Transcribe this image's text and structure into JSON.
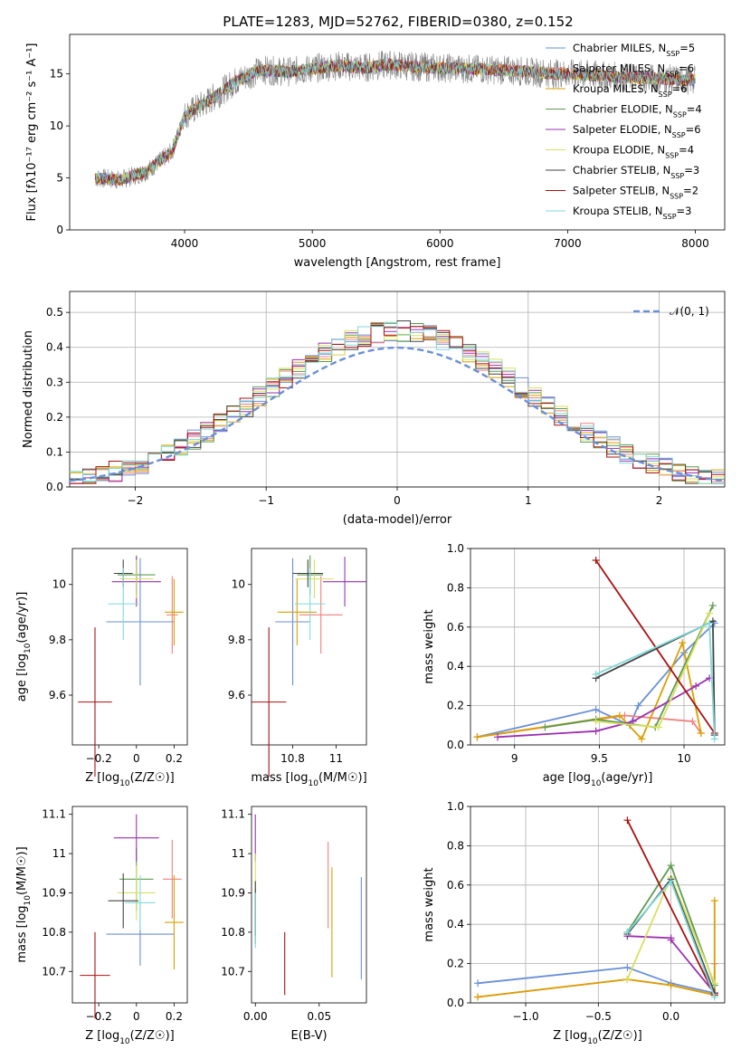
{
  "figure_title": "PLATE=1283, MJD=52762, FIBERID=0380, z=0.152",
  "model_colors": [
    "#6a8fd8",
    "#f08080",
    "#d9a000",
    "#5f9a50",
    "#9b30b0",
    "#d7e060",
    "#444444",
    "#aa1010",
    "#80d8d8"
  ],
  "chart_data": [
    {
      "id": "spectrum",
      "type": "line",
      "xlabel": "wavelength [Angstrom, rest frame]",
      "ylabel": "Flux [fλ10⁻¹⁷ erg cm⁻² s⁻¹ A⁻¹]",
      "xlim": [
        3100,
        8230
      ],
      "ylim": [
        0,
        18.8
      ],
      "xticks": [
        4000,
        5000,
        6000,
        7000,
        8000
      ],
      "yticks": [
        0,
        5,
        10,
        15
      ],
      "legend_position": "top-right",
      "legend": [
        {
          "base": "Chabrier MILES, N",
          "sub": "SSP",
          "tail": "=5"
        },
        {
          "base": "Salpeter MILES, N",
          "sub": "SSP",
          "tail": "=6"
        },
        {
          "base": "Kroupa MILES, N",
          "sub": "SSP",
          "tail": "=6"
        },
        {
          "base": "Chabrier ELODIE, N",
          "sub": "SSP",
          "tail": "=4"
        },
        {
          "base": "Salpeter ELODIE, N",
          "sub": "SSP",
          "tail": "=6"
        },
        {
          "base": "Kroupa ELODIE, N",
          "sub": "SSP",
          "tail": "=4"
        },
        {
          "base": "Chabrier STELIB, N",
          "sub": "SSP",
          "tail": "=3"
        },
        {
          "base": "Salpeter STELIB, N",
          "sub": "SSP",
          "tail": "=2"
        },
        {
          "base": "Kroupa STELIB, N",
          "sub": "SSP",
          "tail": "=3"
        }
      ],
      "continuum_x": [
        3300,
        3500,
        3700,
        3900,
        4000,
        4200,
        4400,
        4600,
        4800,
        5000,
        5200,
        5400,
        5600,
        5800,
        6000,
        6200,
        6400,
        6600,
        6800,
        7000,
        7200,
        7400,
        7600,
        7800,
        8000
      ],
      "continuum_y": [
        5.0,
        4.8,
        5.6,
        7.5,
        11.0,
        12.5,
        14.3,
        15.4,
        15.2,
        15.5,
        15.8,
        15.6,
        15.9,
        15.7,
        15.6,
        15.5,
        15.4,
        15.3,
        15.1,
        15.0,
        14.9,
        14.7,
        14.6,
        14.5,
        14.4
      ],
      "grid": false
    },
    {
      "id": "residuals",
      "type": "histogram",
      "xlabel": "(data-model)/error",
      "ylabel": "Normed distribution",
      "xlim": [
        -2.5,
        2.5
      ],
      "ylim": [
        0,
        0.56
      ],
      "xticks": [
        -2,
        -1,
        0,
        1,
        2
      ],
      "yticks": [
        0.0,
        0.1,
        0.2,
        0.3,
        0.4,
        0.5
      ],
      "bins_start": -2.5,
      "bin_width": 0.1,
      "reference_label": "𝒩(0, 1)",
      "reference_color": "#6a8fd8",
      "legend_position": "top-right",
      "grid": true
    },
    {
      "id": "age-vs-Z",
      "type": "errorbar",
      "xlabel_main": "Z [log",
      "xlabel_sub": "10",
      "xlabel_tail": "(Z/Z☉)]",
      "ylabel_main": "age  [log",
      "ylabel_sub": "10",
      "ylabel_tail": "(age/yr)]",
      "xlim": [
        -0.34,
        0.27
      ],
      "ylim": [
        9.42,
        10.13
      ],
      "xticks": [
        -0.2,
        0.0,
        0.2
      ],
      "yticks": [
        9.6,
        9.8,
        10.0
      ],
      "points": [
        {
          "x": 0.02,
          "y": 9.865,
          "xerr": 0.18,
          "yerr": 0.23
        },
        {
          "x": 0.19,
          "y": 9.89,
          "xerr": 0.03,
          "yerr": 0.14
        },
        {
          "x": 0.2,
          "y": 9.9,
          "xerr": 0.05,
          "yerr": 0.12
        },
        {
          "x": 0.0,
          "y": 10.035,
          "xerr": 0.1,
          "yerr": 0.07
        },
        {
          "x": 0.0,
          "y": 10.01,
          "xerr": 0.13,
          "yerr": 0.09
        },
        {
          "x": 0.0,
          "y": 10.02,
          "xerr": 0.09,
          "yerr": 0.07
        },
        {
          "x": -0.07,
          "y": 10.04,
          "xerr": 0.05,
          "yerr": 0.05
        },
        {
          "x": -0.22,
          "y": 9.575,
          "xerr": 0.09,
          "yerr": 0.27
        },
        {
          "x": -0.07,
          "y": 9.93,
          "xerr": 0.08,
          "yerr": 0.13
        }
      ]
    },
    {
      "id": "age-vs-mass",
      "type": "errorbar",
      "xlabel_main": "mass [log",
      "xlabel_sub": "10",
      "xlabel_tail": "(M/M☉)]",
      "xlim": [
        10.61,
        11.14
      ],
      "ylim": [
        9.42,
        10.13
      ],
      "xticks": [
        10.8,
        11.0
      ],
      "yticks": [
        9.6,
        9.8,
        10.0
      ],
      "points": [
        {
          "x": 10.8,
          "y": 9.865,
          "xerr": 0.08,
          "yerr": 0.23
        },
        {
          "x": 10.93,
          "y": 9.89,
          "xerr": 0.1,
          "yerr": 0.14
        },
        {
          "x": 10.82,
          "y": 9.9,
          "xerr": 0.09,
          "yerr": 0.12
        },
        {
          "x": 10.88,
          "y": 10.035,
          "xerr": 0.06,
          "yerr": 0.07
        },
        {
          "x": 11.04,
          "y": 10.01,
          "xerr": 0.1,
          "yerr": 0.09
        },
        {
          "x": 10.9,
          "y": 10.02,
          "xerr": 0.09,
          "yerr": 0.07
        },
        {
          "x": 10.87,
          "y": 10.04,
          "xerr": 0.07,
          "yerr": 0.05
        },
        {
          "x": 10.69,
          "y": 9.575,
          "xerr": 0.08,
          "yerr": 0.27
        },
        {
          "x": 10.88,
          "y": 9.93,
          "xerr": 0.07,
          "yerr": 0.13
        }
      ]
    },
    {
      "id": "weight-vs-age",
      "type": "line",
      "xlabel_main": "age  [log",
      "xlabel_sub": "10",
      "xlabel_tail": "(age/yr)]",
      "ylabel": "mass weight",
      "xlim": [
        8.74,
        10.24
      ],
      "ylim": [
        0.0,
        1.0
      ],
      "xticks": [
        9.0,
        9.5,
        10.0
      ],
      "yticks": [
        0.0,
        0.2,
        0.4,
        0.6,
        0.8,
        1.0
      ],
      "grid": true,
      "series": [
        {
          "x": [
            8.78,
            9.48,
            9.68,
            9.73,
            10.0,
            10.18
          ],
          "y": [
            0.04,
            0.18,
            0.1,
            0.2,
            0.47,
            0.62
          ]
        },
        {
          "x": [
            8.78,
            9.65,
            10.05,
            10.1
          ],
          "y": [
            0.04,
            0.15,
            0.12,
            0.06
          ]
        },
        {
          "x": [
            8.78,
            9.62,
            9.75,
            9.99,
            10.1
          ],
          "y": [
            0.04,
            0.15,
            0.03,
            0.52,
            0.06
          ]
        },
        {
          "x": [
            9.18,
            9.48,
            9.83,
            10.17
          ],
          "y": [
            0.09,
            0.13,
            0.09,
            0.71
          ]
        },
        {
          "x": [
            8.9,
            9.48,
            9.7,
            10.07,
            10.15
          ],
          "y": [
            0.04,
            0.07,
            0.12,
            0.3,
            0.34
          ]
        },
        {
          "x": [
            9.48,
            9.85,
            10.15
          ],
          "y": [
            0.12,
            0.09,
            0.67
          ]
        },
        {
          "x": [
            9.48,
            10.17,
            10.18
          ],
          "y": [
            0.34,
            0.63,
            0.05
          ]
        },
        {
          "x": [
            9.48,
            10.18
          ],
          "y": [
            0.94,
            0.06
          ]
        },
        {
          "x": [
            9.48,
            10.15,
            10.18
          ],
          "y": [
            0.36,
            0.62,
            0.03
          ]
        }
      ]
    },
    {
      "id": "mass-vs-Z",
      "type": "errorbar",
      "xlabel_main": "Z [log",
      "xlabel_sub": "10",
      "xlabel_tail": "(Z/Z☉)]",
      "ylabel_main": "mass [log",
      "ylabel_sub": "10",
      "ylabel_tail": "(M/M☉)]",
      "xlim": [
        -0.34,
        0.27
      ],
      "ylim": [
        10.62,
        11.12
      ],
      "xticks": [
        -0.2,
        0.0,
        0.2
      ],
      "yticks": [
        10.7,
        10.8,
        10.9,
        11.0,
        11.1
      ],
      "points": [
        {
          "x": 0.02,
          "y": 10.795,
          "xerr": 0.18,
          "yerr": 0.08
        },
        {
          "x": 0.19,
          "y": 10.935,
          "xerr": 0.05,
          "yerr": 0.1
        },
        {
          "x": 0.2,
          "y": 10.825,
          "xerr": 0.05,
          "yerr": 0.12
        },
        {
          "x": 0.0,
          "y": 10.935,
          "xerr": 0.09,
          "yerr": 0.08
        },
        {
          "x": 0.0,
          "y": 11.04,
          "xerr": 0.12,
          "yerr": 0.06
        },
        {
          "x": 0.0,
          "y": 10.9,
          "xerr": 0.1,
          "yerr": 0.07
        },
        {
          "x": -0.07,
          "y": 10.88,
          "xerr": 0.08,
          "yerr": 0.07
        },
        {
          "x": -0.22,
          "y": 10.69,
          "xerr": 0.08,
          "yerr": 0.11
        },
        {
          "x": 0.02,
          "y": 10.875,
          "xerr": 0.08,
          "yerr": 0.07
        }
      ]
    },
    {
      "id": "mass-vs-ebv",
      "type": "errorbar",
      "xlabel": "E(B-V)",
      "xlim": [
        -0.003,
        0.087
      ],
      "ylim": [
        10.62,
        11.12
      ],
      "xticks": [
        0.0,
        0.05
      ],
      "xtick_labels": [
        "0.00",
        "0.05"
      ],
      "yticks": [
        10.7,
        10.8,
        10.9,
        11.0,
        11.1
      ],
      "points": [
        {
          "x": 0.083,
          "y": 10.81,
          "xerr": 0,
          "yerr": 0.13
        },
        {
          "x": 0.057,
          "y": 10.92,
          "xerr": 0,
          "yerr": 0.11
        },
        {
          "x": 0.06,
          "y": 10.825,
          "xerr": 0,
          "yerr": 0.14
        },
        {
          "x": 0.0,
          "y": 10.84,
          "xerr": 0,
          "yerr": 0.07
        },
        {
          "x": 0.0,
          "y": 11.04,
          "xerr": 0,
          "yerr": 0.06
        },
        {
          "x": 0.0,
          "y": 10.93,
          "xerr": 0,
          "yerr": 0.07
        },
        {
          "x": 0.0,
          "y": 10.86,
          "xerr": 0,
          "yerr": 0.07
        },
        {
          "x": 0.023,
          "y": 10.72,
          "xerr": 0,
          "yerr": 0.08
        },
        {
          "x": 0.0,
          "y": 10.83,
          "xerr": 0,
          "yerr": 0.07
        }
      ]
    },
    {
      "id": "weight-vs-Z",
      "type": "line",
      "xlabel_main": "Z [log",
      "xlabel_sub": "10",
      "xlabel_tail": "(Z/Z☉)]",
      "ylabel": "mass weight",
      "xlim": [
        -1.38,
        0.37
      ],
      "ylim": [
        0.0,
        1.0
      ],
      "xticks": [
        -1.0,
        -0.5,
        0.0
      ],
      "xtick_labels": [
        "−1.0",
        "−0.5",
        "0.0"
      ],
      "yticks": [
        0.0,
        0.2,
        0.4,
        0.6,
        0.8,
        1.0
      ],
      "grid": true,
      "series": [
        {
          "x": [
            -1.33,
            -0.3,
            0.0,
            0.3
          ],
          "y": [
            0.1,
            0.18,
            0.1,
            0.05
          ]
        },
        {
          "x": [
            -1.33,
            -0.3,
            0.0,
            0.3,
            0.3
          ],
          "y": [
            0.03,
            0.12,
            0.09,
            0.04,
            0.2
          ]
        },
        {
          "x": [
            -1.33,
            -0.3,
            0.0,
            0.3,
            0.3
          ],
          "y": [
            0.03,
            0.12,
            0.09,
            0.04,
            0.52
          ]
        },
        {
          "x": [
            -0.3,
            0.0,
            0.3
          ],
          "y": [
            0.36,
            0.7,
            0.09
          ]
        },
        {
          "x": [
            -0.3,
            0.0,
            0.0,
            0.3
          ],
          "y": [
            0.34,
            0.33,
            0.32,
            0.05
          ]
        },
        {
          "x": [
            -0.3,
            0.0,
            0.3
          ],
          "y": [
            0.12,
            0.64,
            0.1
          ]
        },
        {
          "x": [
            -0.3,
            0.0,
            0.3
          ],
          "y": [
            0.35,
            0.63,
            0.05
          ]
        },
        {
          "x": [
            -0.3,
            0.3
          ],
          "y": [
            0.93,
            0.04
          ]
        },
        {
          "x": [
            -0.3,
            0.0,
            0.3
          ],
          "y": [
            0.36,
            0.62,
            0.03
          ]
        }
      ]
    }
  ]
}
